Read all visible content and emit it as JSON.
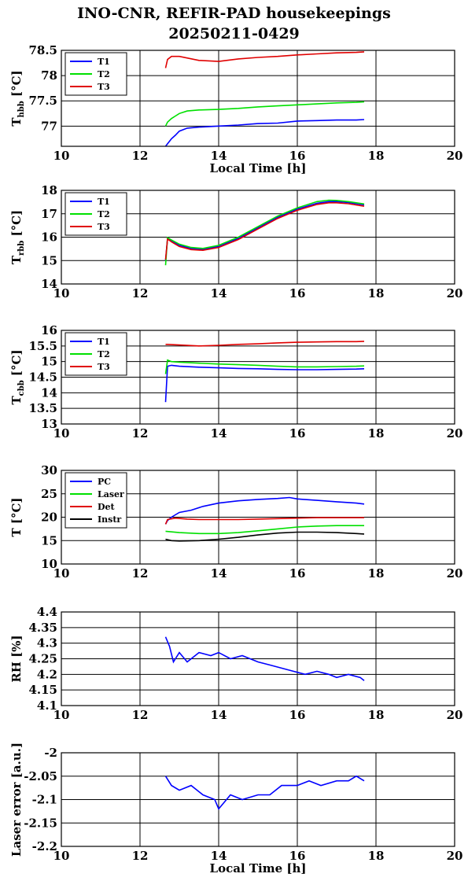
{
  "title": {
    "line1": "INO-CNR, REFIR-PAD housekeepings",
    "line2": "20250211-0429"
  },
  "colors": {
    "blue": "#0000ff",
    "green": "#00e000",
    "red": "#e00000",
    "black": "#000000"
  },
  "chart_data": [
    {
      "type": "line",
      "ylabel_main": "T",
      "ylabel_sub": "hbb",
      "ylabel_unit": " [°C]",
      "xlabel": "Local Time [h]",
      "xlim": [
        10,
        20
      ],
      "ylim": [
        76.6,
        78.5
      ],
      "xticks": [
        "10",
        "12",
        "14",
        "16",
        "18",
        "20"
      ],
      "yticks": [
        "77",
        "77.5",
        "78",
        "78.5"
      ],
      "yticks_values": [
        77,
        77.5,
        78,
        78.5
      ],
      "series": [
        {
          "name": "T1",
          "color": "#0000ff",
          "x": [
            12.65,
            12.7,
            12.8,
            12.9,
            13.0,
            13.2,
            13.5,
            14.0,
            14.5,
            15.0,
            15.5,
            16.0,
            16.5,
            17.0,
            17.5,
            17.7
          ],
          "y": [
            76.6,
            76.65,
            76.75,
            76.82,
            76.9,
            76.96,
            76.98,
            77.0,
            77.02,
            77.05,
            77.06,
            77.1,
            77.11,
            77.12,
            77.12,
            77.13
          ]
        },
        {
          "name": "T2",
          "color": "#00e000",
          "x": [
            12.65,
            12.7,
            12.8,
            12.9,
            13.0,
            13.2,
            13.5,
            14.0,
            14.5,
            15.0,
            15.5,
            16.0,
            16.5,
            17.0,
            17.5,
            17.7
          ],
          "y": [
            77.0,
            77.08,
            77.15,
            77.2,
            77.25,
            77.3,
            77.32,
            77.33,
            77.35,
            77.38,
            77.4,
            77.42,
            77.44,
            77.46,
            77.47,
            77.48
          ]
        },
        {
          "name": "T3",
          "color": "#e00000",
          "x": [
            12.65,
            12.7,
            12.8,
            13.0,
            13.5,
            14.0,
            14.5,
            15.0,
            15.5,
            16.0,
            16.5,
            17.0,
            17.5,
            17.7
          ],
          "y": [
            78.15,
            78.32,
            78.38,
            78.38,
            78.3,
            78.28,
            78.33,
            78.36,
            78.38,
            78.41,
            78.43,
            78.45,
            78.46,
            78.47
          ]
        }
      ],
      "legend": "top-left"
    },
    {
      "type": "line",
      "ylabel_main": "T",
      "ylabel_sub": "rbb",
      "ylabel_unit": " [°C]",
      "xlabel": "",
      "xlim": [
        10,
        20
      ],
      "ylim": [
        14,
        18
      ],
      "xticks": [
        "10",
        "12",
        "14",
        "16",
        "18",
        "20"
      ],
      "yticks": [
        "14",
        "15",
        "16",
        "17",
        "18"
      ],
      "yticks_values": [
        14,
        15,
        16,
        17,
        18
      ],
      "series": [
        {
          "name": "T1",
          "color": "#0000ff",
          "x": [
            12.65,
            12.7,
            12.8,
            13.0,
            13.3,
            13.6,
            14.0,
            14.5,
            15.0,
            15.5,
            16.0,
            16.5,
            16.8,
            17.0,
            17.3,
            17.7
          ],
          "y": [
            15.0,
            15.95,
            15.85,
            15.65,
            15.52,
            15.48,
            15.6,
            15.95,
            16.4,
            16.85,
            17.2,
            17.45,
            17.52,
            17.52,
            17.48,
            17.38
          ]
        },
        {
          "name": "T2",
          "color": "#00e000",
          "x": [
            12.65,
            12.7,
            12.8,
            13.0,
            13.3,
            13.6,
            14.0,
            14.5,
            15.0,
            15.5,
            16.0,
            16.5,
            16.8,
            17.0,
            17.3,
            17.7
          ],
          "y": [
            14.8,
            15.98,
            15.88,
            15.7,
            15.56,
            15.52,
            15.65,
            16.0,
            16.45,
            16.9,
            17.25,
            17.52,
            17.58,
            17.57,
            17.52,
            17.42
          ]
        },
        {
          "name": "T3",
          "color": "#e00000",
          "x": [
            12.65,
            12.7,
            12.8,
            13.0,
            13.3,
            13.6,
            14.0,
            14.5,
            15.0,
            15.5,
            16.0,
            16.5,
            16.8,
            17.0,
            17.3,
            17.7
          ],
          "y": [
            15.05,
            15.92,
            15.8,
            15.6,
            15.47,
            15.44,
            15.56,
            15.9,
            16.35,
            16.8,
            17.15,
            17.4,
            17.47,
            17.47,
            17.43,
            17.32
          ]
        }
      ],
      "legend": "top-left"
    },
    {
      "type": "line",
      "ylabel_main": "T",
      "ylabel_sub": "cbb",
      "ylabel_unit": " [°C]",
      "xlabel": "",
      "xlim": [
        10,
        20
      ],
      "ylim": [
        13,
        16
      ],
      "xticks": [
        "10",
        "12",
        "14",
        "16",
        "18",
        "20"
      ],
      "yticks": [
        "13",
        "13.5",
        "14",
        "14.5",
        "15",
        "15.5",
        "16"
      ],
      "yticks_values": [
        13,
        13.5,
        14,
        14.5,
        15,
        15.5,
        16
      ],
      "series": [
        {
          "name": "T1",
          "color": "#0000ff",
          "x": [
            12.65,
            12.7,
            12.8,
            13.0,
            13.5,
            14.0,
            14.5,
            15.0,
            15.5,
            16.0,
            16.5,
            17.0,
            17.5,
            17.7
          ],
          "y": [
            13.7,
            14.85,
            14.88,
            14.85,
            14.82,
            14.8,
            14.78,
            14.77,
            14.75,
            14.74,
            14.74,
            14.75,
            14.76,
            14.77
          ]
        },
        {
          "name": "T2",
          "color": "#00e000",
          "x": [
            12.65,
            12.7,
            12.8,
            13.0,
            13.5,
            14.0,
            14.5,
            15.0,
            15.5,
            16.0,
            16.5,
            17.0,
            17.5,
            17.7
          ],
          "y": [
            14.6,
            15.05,
            15.0,
            14.98,
            14.95,
            14.92,
            14.9,
            14.88,
            14.85,
            14.83,
            14.83,
            14.84,
            14.85,
            14.86
          ]
        },
        {
          "name": "T3",
          "color": "#e00000",
          "x": [
            12.65,
            12.7,
            13.0,
            13.5,
            14.0,
            14.5,
            15.0,
            15.5,
            16.0,
            16.5,
            17.0,
            17.5,
            17.7
          ],
          "y": [
            15.55,
            15.55,
            15.53,
            15.5,
            15.52,
            15.55,
            15.57,
            15.6,
            15.62,
            15.63,
            15.64,
            15.64,
            15.65
          ]
        }
      ],
      "legend": "top-left"
    },
    {
      "type": "line",
      "ylabel_main": "T [°C]",
      "ylabel_sub": "",
      "ylabel_unit": "",
      "xlabel": "",
      "xlim": [
        10,
        20
      ],
      "ylim": [
        10,
        30
      ],
      "xticks": [
        "10",
        "12",
        "14",
        "16",
        "18",
        "20"
      ],
      "yticks": [
        "10",
        "15",
        "20",
        "25",
        "30"
      ],
      "yticks_values": [
        10,
        15,
        20,
        25,
        30
      ],
      "series": [
        {
          "name": "PC",
          "color": "#0000ff",
          "x": [
            12.65,
            12.7,
            12.8,
            13.0,
            13.3,
            13.6,
            14.0,
            14.5,
            15.0,
            15.5,
            15.8,
            16.0,
            16.5,
            17.0,
            17.5,
            17.7
          ],
          "y": [
            18.5,
            19.3,
            20.0,
            21.0,
            21.5,
            22.3,
            23.0,
            23.5,
            23.8,
            24.0,
            24.2,
            23.9,
            23.6,
            23.3,
            23.0,
            22.8
          ]
        },
        {
          "name": "Laser",
          "color": "#00e000",
          "x": [
            12.65,
            13.0,
            13.5,
            14.0,
            14.5,
            15.0,
            15.5,
            16.0,
            16.5,
            17.0,
            17.5,
            17.7
          ],
          "y": [
            17.0,
            16.7,
            16.5,
            16.5,
            16.7,
            17.1,
            17.5,
            17.9,
            18.1,
            18.2,
            18.2,
            18.2
          ]
        },
        {
          "name": "Det",
          "color": "#e00000",
          "x": [
            12.65,
            12.7,
            12.9,
            13.2,
            13.5,
            14.0,
            14.5,
            15.0,
            15.5,
            16.0,
            16.5,
            17.0,
            17.5,
            17.7
          ],
          "y": [
            18.5,
            19.5,
            19.8,
            19.6,
            19.5,
            19.5,
            19.5,
            19.6,
            19.7,
            19.8,
            19.9,
            19.9,
            19.9,
            19.9
          ]
        },
        {
          "name": "Instr",
          "color": "#000000",
          "x": [
            12.65,
            12.8,
            13.0,
            13.5,
            14.0,
            14.5,
            15.0,
            15.5,
            16.0,
            16.5,
            17.0,
            17.5,
            17.7
          ],
          "y": [
            15.3,
            15.0,
            14.9,
            15.0,
            15.3,
            15.7,
            16.2,
            16.6,
            16.8,
            16.8,
            16.7,
            16.5,
            16.4
          ]
        }
      ],
      "legend": "top-left"
    },
    {
      "type": "line",
      "ylabel_main": "RH [%]",
      "ylabel_sub": "",
      "ylabel_unit": "",
      "xlabel": "",
      "xlim": [
        10,
        20
      ],
      "ylim": [
        4.1,
        4.4
      ],
      "xticks": [
        "10",
        "12",
        "14",
        "16",
        "18",
        "20"
      ],
      "yticks": [
        "4.1",
        "4.15",
        "4.2",
        "4.25",
        "4.3",
        "4.35",
        "4.4"
      ],
      "yticks_values": [
        4.1,
        4.15,
        4.2,
        4.25,
        4.3,
        4.35,
        4.4
      ],
      "series": [
        {
          "name": "RH",
          "color": "#0000ff",
          "x": [
            12.65,
            12.75,
            12.85,
            13.0,
            13.2,
            13.5,
            13.8,
            14.0,
            14.3,
            14.6,
            15.0,
            15.3,
            15.6,
            15.9,
            16.2,
            16.5,
            16.8,
            17.0,
            17.3,
            17.6,
            17.7
          ],
          "y": [
            4.32,
            4.29,
            4.24,
            4.27,
            4.24,
            4.27,
            4.26,
            4.27,
            4.25,
            4.26,
            4.24,
            4.23,
            4.22,
            4.21,
            4.2,
            4.21,
            4.2,
            4.19,
            4.2,
            4.19,
            4.18
          ]
        }
      ],
      "legend": "none"
    },
    {
      "type": "line",
      "ylabel_main": "Laser error [a.u.]",
      "ylabel_sub": "",
      "ylabel_unit": "",
      "xlabel": "Local Time [h]",
      "xlim": [
        10,
        20
      ],
      "ylim": [
        -2.2,
        -2.0
      ],
      "xticks": [
        "10",
        "12",
        "14",
        "16",
        "18",
        "20"
      ],
      "yticks": [
        "-2.2",
        "-2.15",
        "-2.1",
        "-2.05",
        "-2"
      ],
      "yticks_values": [
        -2.2,
        -2.15,
        -2.1,
        -2.05,
        -2.0
      ],
      "series": [
        {
          "name": "Laser error",
          "color": "#0000ff",
          "x": [
            12.65,
            12.8,
            13.0,
            13.3,
            13.6,
            13.9,
            14.0,
            14.3,
            14.6,
            15.0,
            15.3,
            15.6,
            16.0,
            16.3,
            16.6,
            17.0,
            17.3,
            17.5,
            17.7
          ],
          "y": [
            -2.05,
            -2.07,
            -2.08,
            -2.07,
            -2.09,
            -2.1,
            -2.12,
            -2.09,
            -2.1,
            -2.09,
            -2.09,
            -2.07,
            -2.07,
            -2.06,
            -2.07,
            -2.06,
            -2.06,
            -2.05,
            -2.06
          ]
        }
      ],
      "legend": "none"
    }
  ]
}
